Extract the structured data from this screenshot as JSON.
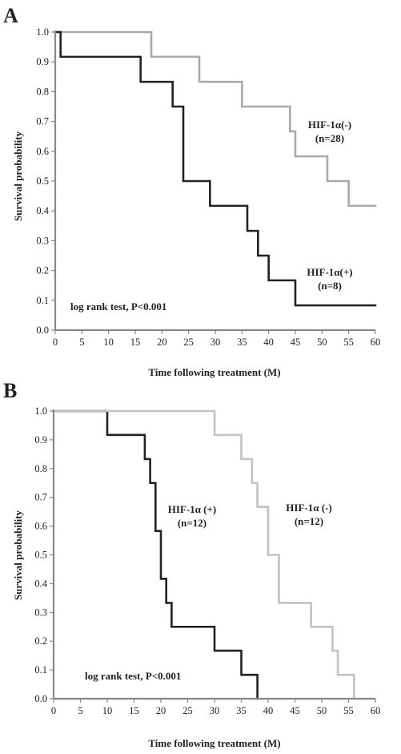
{
  "chart_data": [
    {
      "type": "line",
      "panel": "A",
      "xlabel": "Time following treatment (M)",
      "ylabel": "Survival probability",
      "xlim": [
        0,
        60
      ],
      "ylim": [
        0,
        1
      ],
      "xticks": [
        0,
        5,
        10,
        15,
        20,
        25,
        30,
        35,
        40,
        45,
        50,
        55,
        60
      ],
      "yticks": [
        0.0,
        0.1,
        0.2,
        0.3,
        0.4,
        0.5,
        0.6,
        0.7,
        0.8,
        0.9,
        1.0
      ],
      "grid": false,
      "annotation": "log rank test, P<0.001",
      "series": [
        {
          "name": "HIF-1α(-)",
          "n_label": "(n=28)",
          "color": "#a9a9a9",
          "step_x": [
            0,
            18,
            27,
            35,
            44,
            45,
            51,
            55,
            60
          ],
          "step_y": [
            1.0,
            0.917,
            0.833,
            0.75,
            0.667,
            0.583,
            0.5,
            0.417,
            0.417
          ]
        },
        {
          "name": "HIF-1α(+)",
          "n_label": "(n=8)",
          "color": "#222222",
          "step_x": [
            0,
            1,
            16,
            22,
            24,
            29,
            36,
            38,
            40,
            45,
            60
          ],
          "step_y": [
            1.0,
            0.917,
            0.833,
            0.75,
            0.5,
            0.417,
            0.333,
            0.25,
            0.167,
            0.083,
            0.083
          ]
        }
      ]
    },
    {
      "type": "line",
      "panel": "B",
      "xlabel": "Time following treatment (M)",
      "ylabel": "Survival probability",
      "xlim": [
        0,
        60
      ],
      "ylim": [
        0,
        1
      ],
      "xticks": [
        0,
        5,
        10,
        15,
        20,
        25,
        30,
        35,
        40,
        45,
        50,
        55,
        60
      ],
      "yticks": [
        0.0,
        0.1,
        0.2,
        0.3,
        0.4,
        0.5,
        0.6,
        0.7,
        0.8,
        0.9,
        1.0
      ],
      "grid": false,
      "annotation": "log rank test, P<0.001",
      "series": [
        {
          "name": "HIF-1α (+)",
          "n_label": "(n=12)",
          "color": "#222222",
          "step_x": [
            0,
            10,
            17,
            18,
            19,
            20,
            21,
            22,
            30,
            35,
            38
          ],
          "step_y": [
            1.0,
            0.917,
            0.833,
            0.75,
            0.583,
            0.417,
            0.333,
            0.25,
            0.167,
            0.083,
            0.0
          ]
        },
        {
          "name": "HIF-1α (-)",
          "n_label": "(n=12)",
          "color": "#c2c2c2",
          "step_x": [
            0,
            30,
            35,
            37,
            38,
            40,
            42,
            48,
            52,
            53,
            56
          ],
          "step_y": [
            1.0,
            0.917,
            0.833,
            0.75,
            0.667,
            0.5,
            0.333,
            0.25,
            0.167,
            0.083,
            0.0
          ]
        }
      ]
    }
  ]
}
